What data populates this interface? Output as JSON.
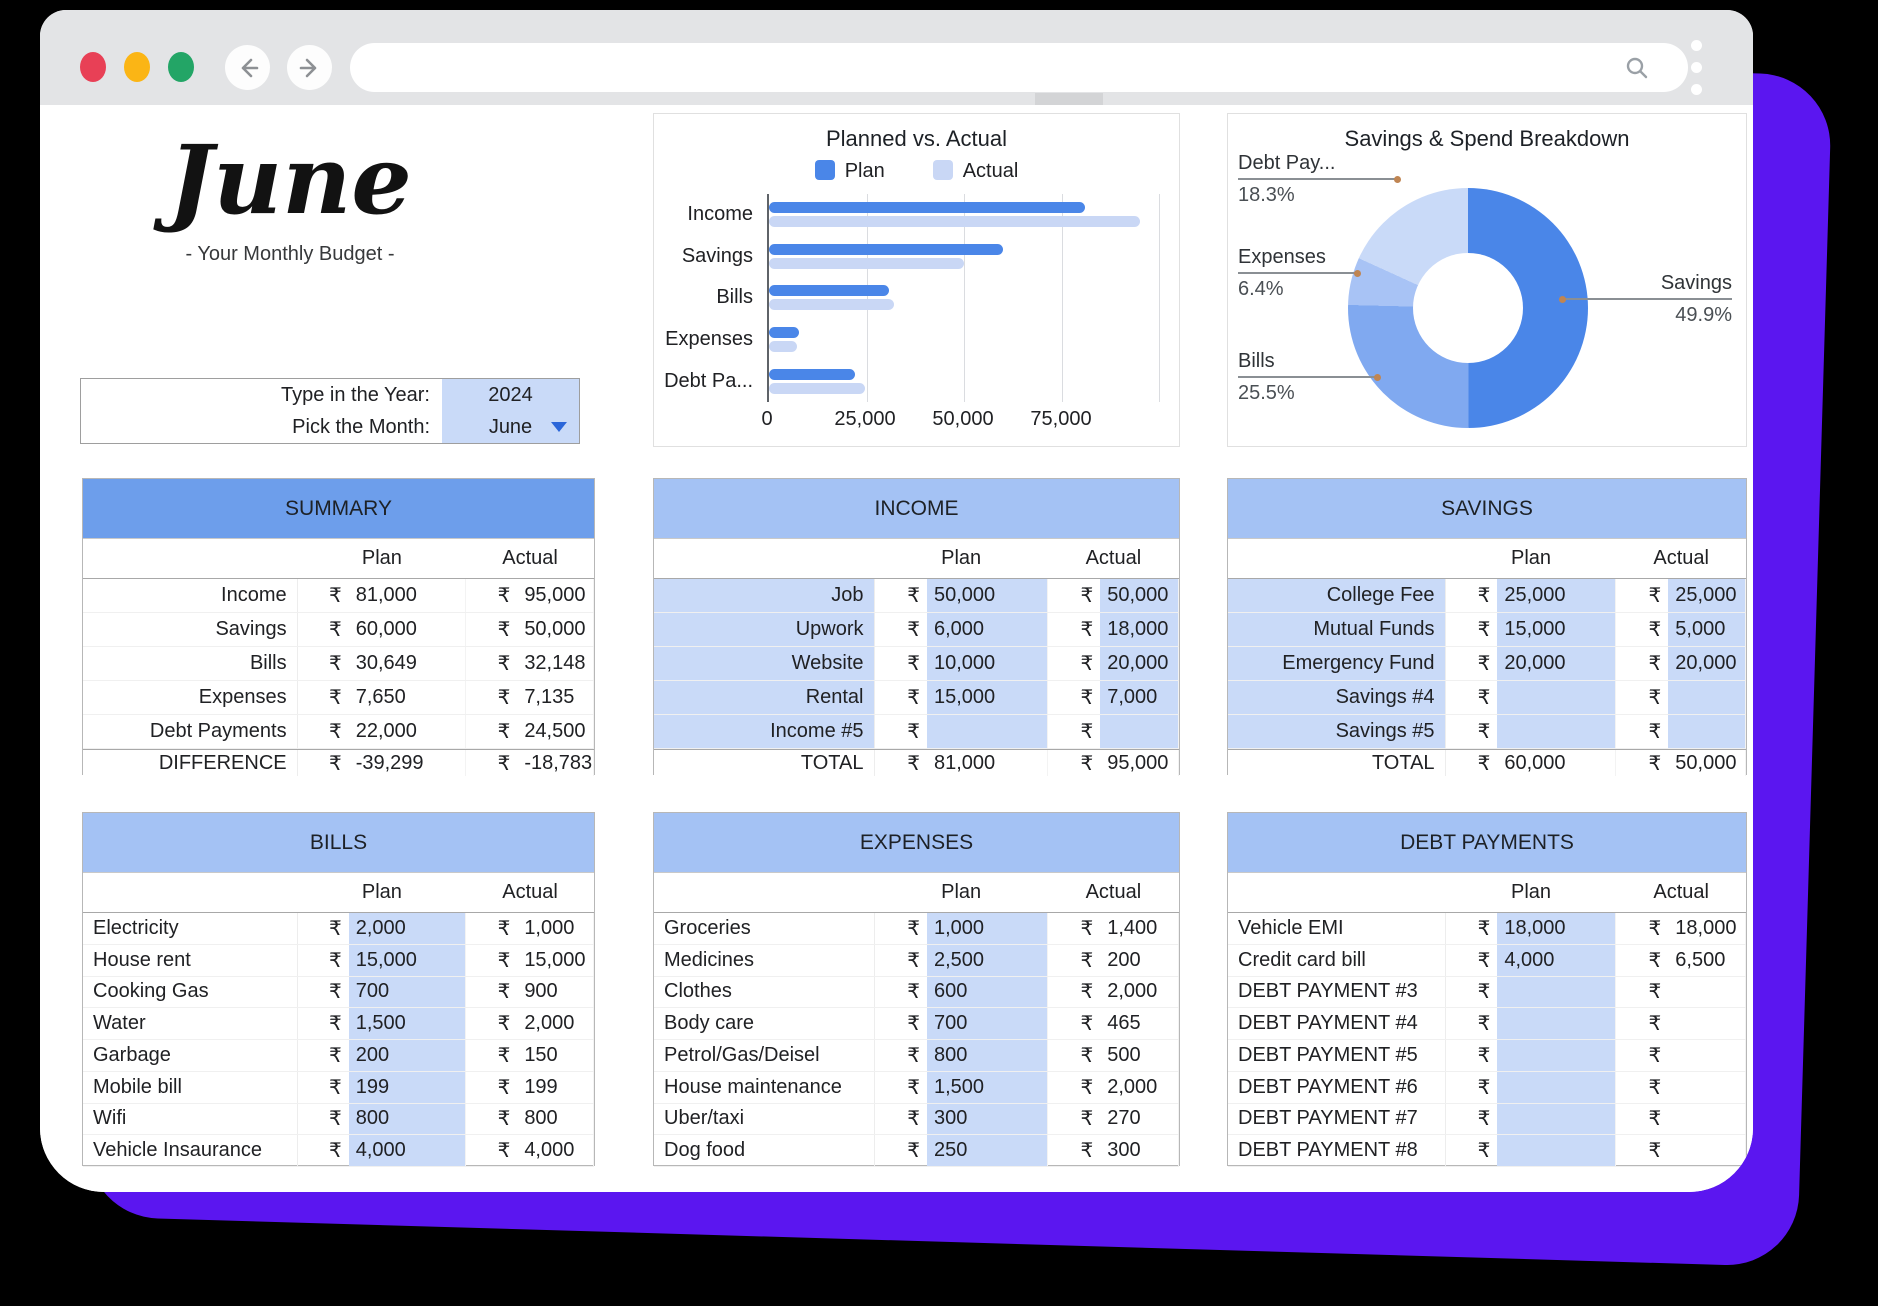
{
  "currency": "₹",
  "theme": {
    "purple_bg": "#5b16f0",
    "toolbar_gray": "#e3e4e6",
    "summary_header": "#6d9eeb",
    "section_header": "#a4c2f4",
    "cell_blue": "#c9daf8",
    "light_red": "#e84056",
    "light_yellow": "#fbb515",
    "light_green": "#23a566"
  },
  "browser": {
    "icons": {
      "back": "arrow-left",
      "forward": "arrow-right",
      "search": "magnifier",
      "menu": "vertical-dots"
    }
  },
  "title": {
    "month": "June",
    "subtitle": "- Your Monthly Budget -"
  },
  "picker": {
    "year_label": "Type in the Year:",
    "year_value": "2024",
    "month_label": "Pick the Month:",
    "month_value": "June"
  },
  "chart_data": [
    {
      "type": "bar",
      "orientation": "horizontal",
      "title": "Planned vs. Actual",
      "categories": [
        "Income",
        "Savings",
        "Bills",
        "Expenses",
        "Debt Pa..."
      ],
      "series": [
        {
          "name": "Plan",
          "color": "#4a86e8",
          "values": [
            81000,
            60000,
            30649,
            7650,
            22000
          ]
        },
        {
          "name": "Actual",
          "color": "#c9d7f5",
          "values": [
            95000,
            50000,
            32148,
            7135,
            24500
          ]
        }
      ],
      "xlim": [
        0,
        100000
      ],
      "xticks": [
        {
          "value": 0,
          "label": "0"
        },
        {
          "value": 25000,
          "label": "25,000"
        },
        {
          "value": 50000,
          "label": "50,000"
        },
        {
          "value": 75000,
          "label": "75,000"
        }
      ],
      "legend_position": "top",
      "grid": true
    },
    {
      "type": "pie",
      "donut": true,
      "title": "Savings & Spend Breakdown",
      "slices": [
        {
          "label": "Savings",
          "pct": 49.9,
          "pct_label": "49.9%",
          "color": "#4a86e8"
        },
        {
          "label": "Bills",
          "pct": 25.5,
          "pct_label": "25.5%",
          "color": "#80a9f0"
        },
        {
          "label": "Expenses",
          "pct": 6.4,
          "pct_label": "6.4%",
          "color": "#a8c3f5"
        },
        {
          "label": "Debt Pay...",
          "pct": 18.3,
          "pct_label": "18.3%",
          "color": "#c9daf8"
        }
      ]
    }
  ],
  "tables": {
    "summary": {
      "title": "SUMMARY",
      "columns": [
        "Plan",
        "Actual"
      ],
      "rows": [
        [
          "Income",
          "81,000",
          "95,000"
        ],
        [
          "Savings",
          "60,000",
          "50,000"
        ],
        [
          "Bills",
          "30,649",
          "32,148"
        ],
        [
          "Expenses",
          "7,650",
          "7,135"
        ],
        [
          "Debt Payments",
          "22,000",
          "24,500"
        ]
      ],
      "footer": [
        "DIFFERENCE",
        "-39,299",
        "-18,783"
      ]
    },
    "income": {
      "title": "INCOME",
      "columns": [
        "Plan",
        "Actual"
      ],
      "rows": [
        [
          "Job",
          "50,000",
          "50,000"
        ],
        [
          "Upwork",
          "6,000",
          "18,000"
        ],
        [
          "Website",
          "10,000",
          "20,000"
        ],
        [
          "Rental",
          "15,000",
          "7,000"
        ],
        [
          "Income #5",
          "",
          ""
        ]
      ],
      "footer": [
        "TOTAL",
        "81,000",
        "95,000"
      ]
    },
    "savings": {
      "title": "SAVINGS",
      "columns": [
        "Plan",
        "Actual"
      ],
      "rows": [
        [
          "College Fee",
          "25,000",
          "25,000"
        ],
        [
          "Mutual Funds",
          "15,000",
          "5,000"
        ],
        [
          "Emergency Fund",
          "20,000",
          "20,000"
        ],
        [
          "Savings #4",
          "",
          ""
        ],
        [
          "Savings #5",
          "",
          ""
        ]
      ],
      "footer": [
        "TOTAL",
        "60,000",
        "50,000"
      ]
    },
    "bills": {
      "title": "BILLS",
      "columns": [
        "Plan",
        "Actual"
      ],
      "rows": [
        [
          "Electricity",
          "2,000",
          "1,000"
        ],
        [
          "House rent",
          "15,000",
          "15,000"
        ],
        [
          "Cooking Gas",
          "700",
          "900"
        ],
        [
          "Water",
          "1,500",
          "2,000"
        ],
        [
          "Garbage",
          "200",
          "150"
        ],
        [
          "Mobile bill",
          "199",
          "199"
        ],
        [
          "Wifi",
          "800",
          "800"
        ],
        [
          "Vehicle Insaurance",
          "4,000",
          "4,000"
        ]
      ]
    },
    "expenses": {
      "title": "EXPENSES",
      "columns": [
        "Plan",
        "Actual"
      ],
      "rows": [
        [
          "Groceries",
          "1,000",
          "1,400"
        ],
        [
          "Medicines",
          "2,500",
          "200"
        ],
        [
          "Clothes",
          "600",
          "2,000"
        ],
        [
          "Body care",
          "700",
          "465"
        ],
        [
          "Petrol/Gas/Deisel",
          "800",
          "500"
        ],
        [
          "House maintenance",
          "1,500",
          "2,000"
        ],
        [
          "Uber/taxi",
          "300",
          "270"
        ],
        [
          "Dog food",
          "250",
          "300"
        ]
      ]
    },
    "debt": {
      "title": "DEBT PAYMENTS",
      "columns": [
        "Plan",
        "Actual"
      ],
      "rows": [
        [
          "Vehicle EMI",
          "18,000",
          "18,000"
        ],
        [
          "Credit card bill",
          "4,000",
          "6,500"
        ],
        [
          "DEBT PAYMENT #3",
          "",
          ""
        ],
        [
          "DEBT PAYMENT #4",
          "",
          ""
        ],
        [
          "DEBT PAYMENT #5",
          "",
          ""
        ],
        [
          "DEBT PAYMENT #6",
          "",
          ""
        ],
        [
          "DEBT PAYMENT #7",
          "",
          ""
        ],
        [
          "DEBT PAYMENT #8",
          "",
          ""
        ]
      ]
    }
  }
}
